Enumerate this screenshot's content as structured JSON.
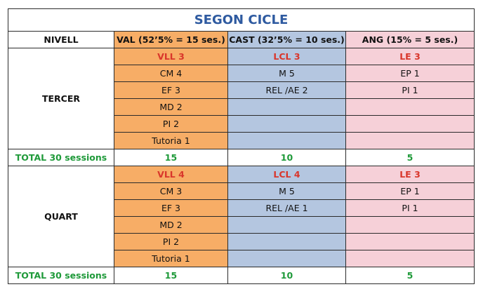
{
  "title": "SEGON CICLE",
  "header": {
    "nivell": "NIVELL",
    "val": "VAL (52’5%   = 15 ses.)",
    "cast": "CAST (32’5%  = 10 ses.)",
    "ang": "ANG (15%   = 5 ses.)"
  },
  "colors": {
    "val": "#f7ad66",
    "cast": "#b4c6e0",
    "ang": "#f6d0d8",
    "title": "#2e5aa0",
    "red": "#d9362b",
    "green": "#1f9a3a"
  },
  "blocks": [
    {
      "level": "TERCER",
      "rows": [
        [
          "VLL 3",
          "LCL 3",
          "LE 3"
        ],
        [
          "CM 4",
          "M 5",
          "EP 1"
        ],
        [
          "EF 3",
          "REL /AE 2",
          "PI 1"
        ],
        [
          "MD 2",
          "",
          ""
        ],
        [
          "PI 2",
          "",
          ""
        ],
        [
          "Tutoria 1",
          "",
          ""
        ]
      ],
      "total": {
        "label": "TOTAL 30 sessions",
        "val": "15",
        "cast": "10",
        "ang": "5"
      }
    },
    {
      "level": "QUART",
      "rows": [
        [
          "VLL 4",
          "LCL 4",
          "LE 3"
        ],
        [
          "CM 3",
          "M 5",
          "EP 1"
        ],
        [
          "EF 3",
          "REL /AE 1",
          "PI 1"
        ],
        [
          "MD 2",
          "",
          ""
        ],
        [
          "PI 2",
          "",
          ""
        ],
        [
          "Tutoria 1",
          "",
          ""
        ]
      ],
      "total": {
        "label": "TOTAL 30 sessions",
        "val": "15",
        "cast": "10",
        "ang": "5"
      }
    }
  ]
}
